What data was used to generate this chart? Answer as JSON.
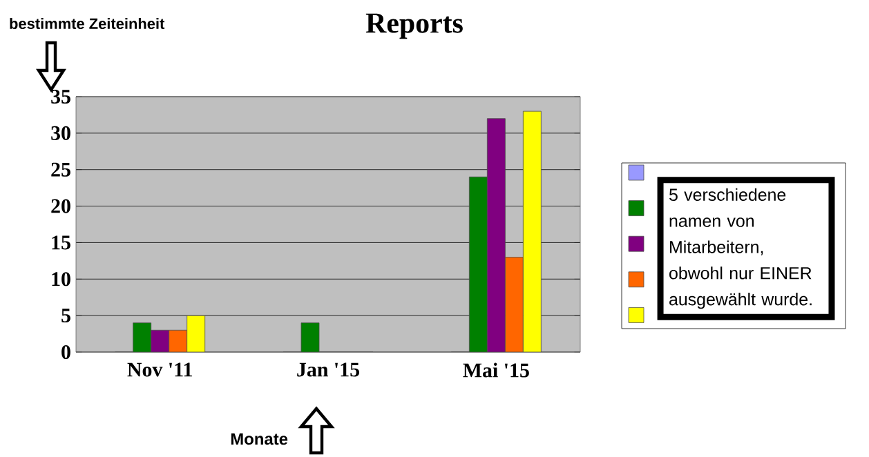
{
  "chart_data": {
    "type": "bar",
    "title": "Reports",
    "xlabel": "Monate",
    "ylabel": "bestimmte Zeiteinheit",
    "categories": [
      "Nov '11",
      "Jan '15",
      "Mai '15"
    ],
    "series": [
      {
        "color": "#9999ff",
        "values": [
          0,
          0,
          0
        ]
      },
      {
        "color": "#008000",
        "values": [
          4,
          4,
          24
        ]
      },
      {
        "color": "#800080",
        "values": [
          3,
          0,
          32
        ]
      },
      {
        "color": "#ff6600",
        "values": [
          3,
          0,
          13
        ]
      },
      {
        "color": "#ffff00",
        "values": [
          5,
          0,
          33
        ]
      }
    ],
    "ylim": [
      0,
      35
    ],
    "yticks": [
      0,
      5,
      10,
      15,
      20,
      25,
      30,
      35
    ],
    "grid": "y",
    "annotations": [
      "5 verschiedene namen von Mitarbeitern, obwohl nur EINER ausgewählt wurde."
    ]
  }
}
